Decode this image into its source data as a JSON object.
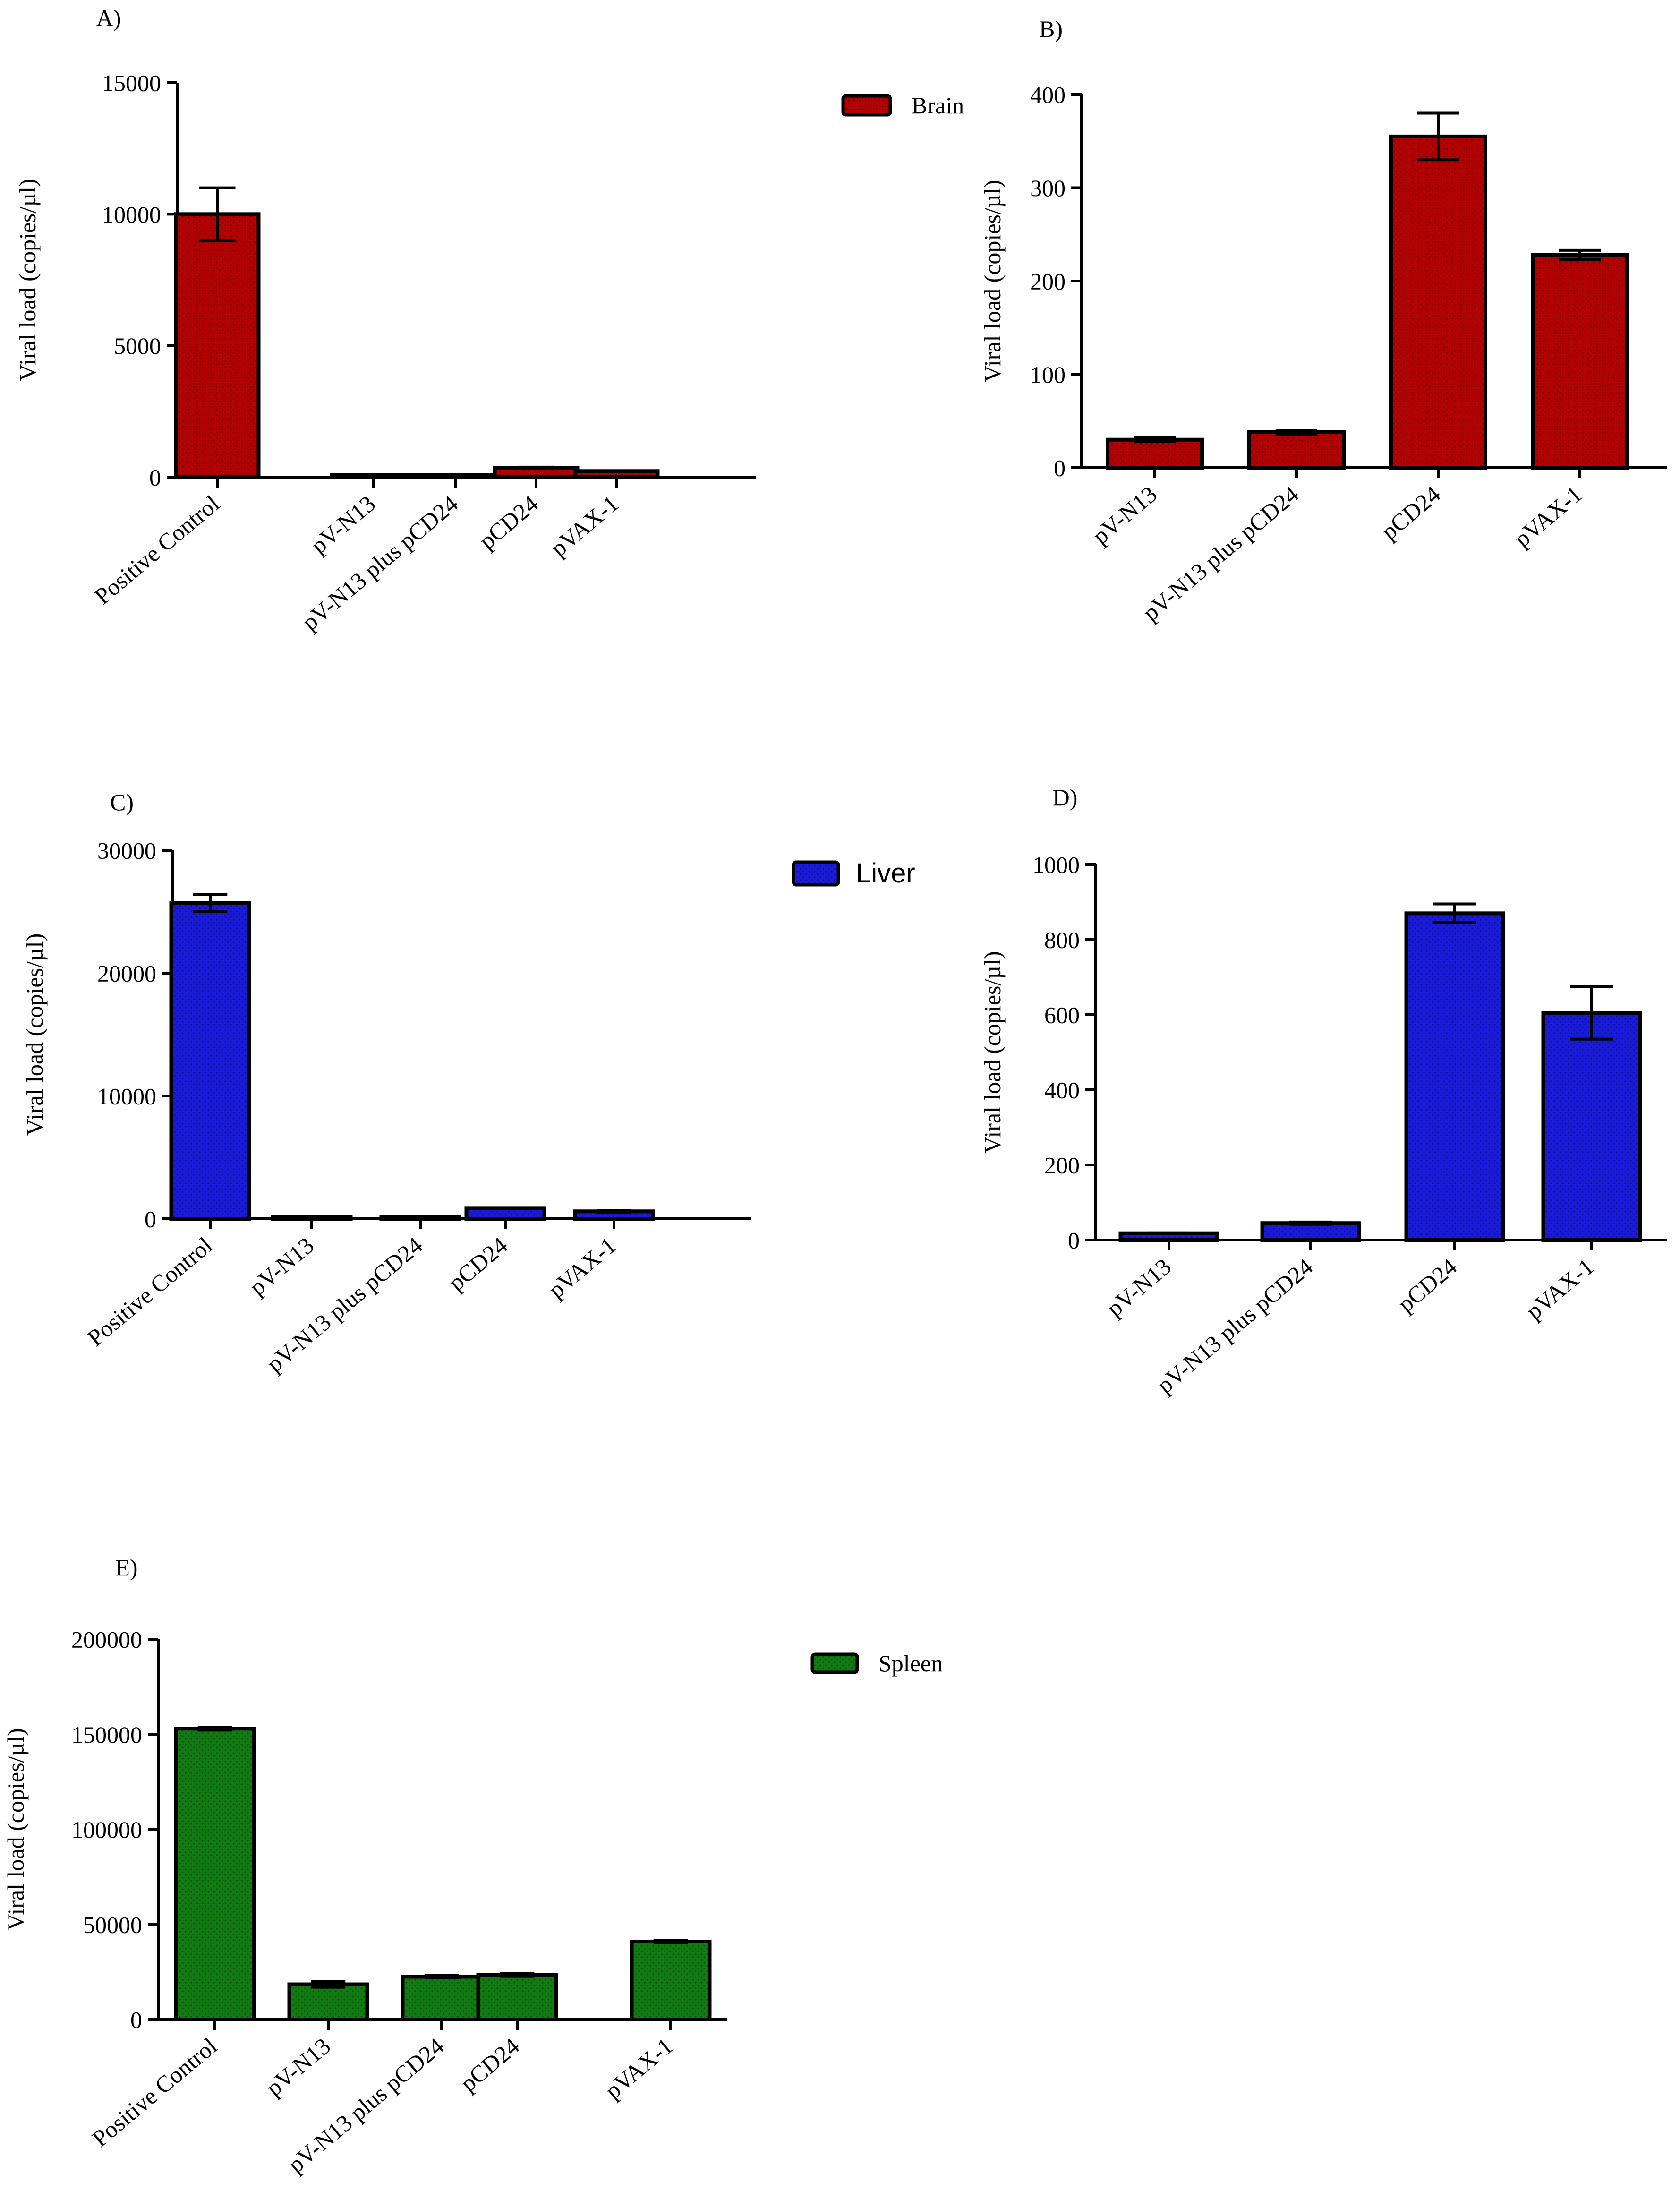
{
  "colors": {
    "brain": "#b30000",
    "liver": "#1a1ad9",
    "spleen": "#127a12",
    "axis": "#000000"
  },
  "chart_data": [
    {
      "panel": "A)",
      "type": "bar",
      "legend": "Brain",
      "legend_placement": "top-right",
      "color_key": "brain",
      "ylabel": "Viral load (copies/µl)",
      "xlabel": "",
      "ylim": [
        0,
        15000
      ],
      "yticks": [
        0,
        5000,
        10000,
        15000
      ],
      "ytick_labels": [
        "0",
        "5000",
        "10000",
        "15000"
      ],
      "categories": [
        "Positive Control",
        "pV-N13",
        "pV-N13 plus pCD24",
        "pCD24",
        "pVAX-1"
      ],
      "values": [
        10000,
        30,
        38,
        355,
        228
      ],
      "errors": [
        1000,
        2,
        2,
        25,
        5
      ]
    },
    {
      "panel": "B)",
      "type": "bar",
      "legend": "",
      "color_key": "brain",
      "ylabel": "Viral load (copies/µl)",
      "xlabel": "",
      "ylim": [
        0,
        400
      ],
      "yticks": [
        0,
        100,
        200,
        300,
        400
      ],
      "ytick_labels": [
        "0",
        "100",
        "200",
        "300",
        "400"
      ],
      "categories": [
        "pV-N13",
        "pV-N13 plus pCD24",
        "pCD24",
        "pVAX-1"
      ],
      "values": [
        30,
        38,
        355,
        228
      ],
      "errors": [
        2,
        2,
        25,
        5
      ]
    },
    {
      "panel": "C)",
      "type": "bar",
      "legend": "Liver",
      "legend_placement": "top-right",
      "color_key": "liver",
      "ylabel": "Viral load (copies/µl)",
      "xlabel": "",
      "ylim": [
        0,
        30000
      ],
      "yticks": [
        0,
        10000,
        20000,
        30000
      ],
      "ytick_labels": [
        "0",
        "10000",
        "20000",
        "30000"
      ],
      "categories": [
        "Positive Control",
        "pV-N13",
        "pV-N13 plus pCD24",
        "pCD24",
        "pVAX-1"
      ],
      "values": [
        25700,
        18,
        45,
        870,
        605
      ],
      "errors": [
        700,
        1,
        3,
        25,
        70
      ]
    },
    {
      "panel": "D)",
      "type": "bar",
      "legend": "",
      "color_key": "liver",
      "ylabel": "Viral load (copies/µl)",
      "xlabel": "",
      "ylim": [
        0,
        1000
      ],
      "yticks": [
        0,
        200,
        400,
        600,
        800,
        1000
      ],
      "ytick_labels": [
        "0",
        "200",
        "400",
        "600",
        "800",
        "1000"
      ],
      "categories": [
        "pV-N13",
        "pV-N13 plus pCD24",
        "pCD24",
        "pVAX-1"
      ],
      "values": [
        18,
        45,
        870,
        605
      ],
      "errors": [
        1,
        3,
        25,
        70
      ]
    },
    {
      "panel": "E)",
      "type": "bar",
      "legend": "Spleen",
      "legend_placement": "top-right",
      "color_key": "spleen",
      "ylabel": "Viral load (copies/µl)",
      "xlabel": "",
      "ylim": [
        0,
        200000
      ],
      "yticks": [
        0,
        50000,
        100000,
        150000,
        200000
      ],
      "ytick_labels": [
        "0",
        "50000",
        "100000",
        "150000",
        "200000"
      ],
      "categories": [
        "Positive Control",
        "pV-N13",
        "pV-N13 plus pCD24",
        "pCD24",
        "pVAX-1"
      ],
      "values": [
        153000,
        18500,
        22500,
        23500,
        41000
      ],
      "errors": [
        800,
        1500,
        600,
        800,
        500
      ]
    }
  ]
}
